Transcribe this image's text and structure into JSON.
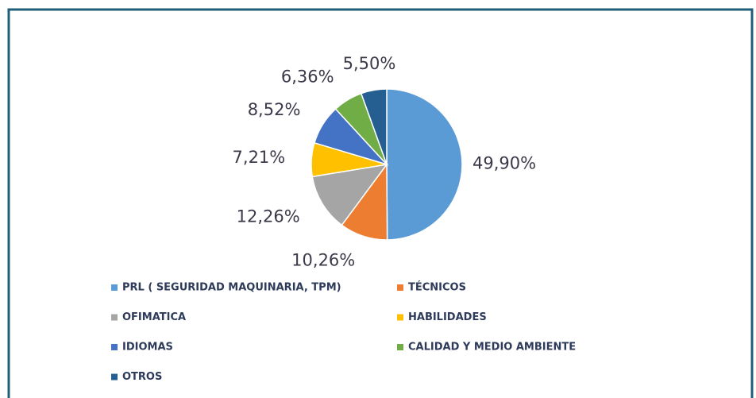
{
  "chart_data": {
    "type": "pie",
    "categories": [
      "PRL ( SEGURIDAD MAQUINARIA, TPM)",
      "TÉCNICOS",
      "OFIMATICA",
      "HABILIDADES",
      "IDIOMAS",
      "CALIDAD Y MEDIO AMBIENTE",
      "OTROS"
    ],
    "values": [
      49.9,
      10.26,
      12.26,
      7.21,
      8.52,
      6.36,
      5.5
    ],
    "value_labels": [
      "49,90%",
      "10,26%",
      "12,26%",
      "7,21%",
      "8,52%",
      "6,36%",
      "5,50%"
    ],
    "colors": [
      "#5b9bd5",
      "#ed7d31",
      "#a5a5a5",
      "#ffc000",
      "#4472c4",
      "#70ad47",
      "#255e91"
    ],
    "legend": "bottom"
  }
}
